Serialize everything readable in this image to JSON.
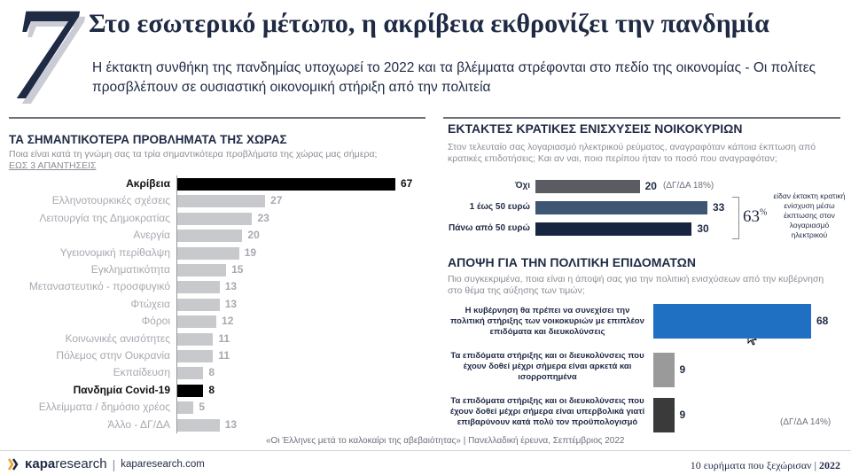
{
  "header": {
    "number": "7",
    "title": "Στο εσωτερικό μέτωπο, η ακρίβεια εκθρονίζει την πανδημία",
    "subtitle": "Η έκτακτη συνθήκη της πανδημίας υποχωρεί το 2022 και τα βλέμματα στρέφονται στο πεδίο της οικονομίας - Οι πολίτες προσβλέπουν σε ουσιαστική οικονομική στήριξη από την πολιτεία"
  },
  "left": {
    "title": "ΤΑ ΣΗΜΑΝΤΙΚΟΤΕΡΑ ΠΡΟΒΛΗΜΑΤΑ ΤΗΣ ΧΩΡΑΣ",
    "question": "Ποια είναι κατά τη γνώμη σας τα τρία σημαντικότερα προβλήματα της χώρας μας σήμερα;",
    "note": "ΕΩΣ 3 ΑΠΑΝΤΗΣΕΙΣ"
  },
  "subsidies": {
    "title": "ΕΚΤΑΚΤΕΣ ΚΡΑΤΙΚΕΣ ΕΝΙΣΧΥΣΕΙΣ ΝΟΙΚΟΚΥΡΙΩΝ",
    "question": "Στον τελευταίο σας λογαριασμό ηλεκτρικού ρεύματος, αναγραφόταν κάποια έκπτωση από κρατικές επιδοτήσεις; Και αν ναι, ποιο περίπου ήταν το ποσό που αναγραφόταν;",
    "dk_note": "(ΔΓ/ΔΑ 18%)",
    "total_label": "63",
    "total_unit": "%",
    "total_desc": "είδαν έκτακτη κρατική ενίσχυση μέσω έκπτωσης στον λογαριασμό ηλεκτρικού"
  },
  "policy": {
    "title": "ΑΠΟΨΗ ΓΙΑ ΤΗΝ ΠΟΛΙΤΙΚΗ ΕΠΙΔΟΜΑΤΩΝ",
    "question": "Πιο συγκεκριμένα, ποια είναι η άποψή σας για την πολιτική ενισχύσεων από την κυβέρνηση στο θέμα της αύξησης των τιμών;",
    "dk_note": "(ΔΓ/ΔΑ 14%)"
  },
  "footer": {
    "source": "«Οι Έλληνες μετά το καλοκαίρι της αβεβαιότητας» | Πανελλαδική έρευνα, Σεπτέμβριος 2022",
    "brand_a": "κapa",
    "brand_b": "research",
    "website": "kaparesearch.com",
    "right_text": "10 ευρήματα που ξεχώρισαν",
    "year": "2022"
  },
  "colors": {
    "navy": "#1f2a44",
    "highlight_bar": "#000000",
    "muted_bar": "#c8c9cc",
    "subsidy_bars": [
      "#5a5c61",
      "#3e5574",
      "#182540"
    ],
    "policy_bars": [
      "#1f6fc2",
      "#9a9a9a",
      "#3a3a3a"
    ]
  },
  "chart_data": [
    {
      "type": "bar",
      "orientation": "horizontal",
      "title": "ΤΑ ΣΗΜΑΝΤΙΚΟΤΕΡΑ ΠΡΟΒΛΗΜΑΤΑ ΤΗΣ ΧΩΡΑΣ",
      "categories": [
        "Ακρίβεια",
        "Ελληνοτουρκικές σχέσεις",
        "Λειτουργία της Δημοκρατίας",
        "Ανεργία",
        "Υγειονομική περίθαλψη",
        "Εγκληματικότητα",
        "Μεταναστευτικό - προσφυγικό",
        "Φτώχεια",
        "Φόροι",
        "Κοινωνικές ανισότητες",
        "Πόλεμος στην Ουκρανία",
        "Εκπαίδευση",
        "Πανδημία Covid-19",
        "Ελλείμματα / δημόσιο χρέος",
        "Άλλο - ΔΓ/ΔΑ"
      ],
      "values": [
        67,
        27,
        23,
        20,
        19,
        15,
        13,
        13,
        12,
        11,
        11,
        8,
        8,
        5,
        13
      ],
      "highlight": [
        0,
        12
      ],
      "xlim": [
        0,
        70
      ]
    },
    {
      "type": "bar",
      "orientation": "horizontal",
      "title": "ΕΚΤΑΚΤΕΣ ΚΡΑΤΙΚΕΣ ΕΝΙΣΧΥΣΕΙΣ ΝΟΙΚΟΚΥΡΙΩΝ",
      "categories": [
        "Όχι",
        "1 έως 50 ευρώ",
        "Πάνω από 50 ευρώ"
      ],
      "values": [
        20,
        33,
        30
      ],
      "xlim": [
        0,
        35
      ]
    },
    {
      "type": "bar",
      "orientation": "horizontal",
      "title": "ΑΠΟΨΗ ΓΙΑ ΤΗΝ ΠΟΛΙΤΙΚΗ ΕΠΙΔΟΜΑΤΩΝ",
      "categories": [
        "Η κυβέρνηση θα πρέπει να συνεχίσει την πολιτική στήριξης των νοικοκυριών με επιπλέον επιδόματα και διευκολύνσεις",
        "Τα επιδόματα στήριξης και οι διευκολύνσεις που έχουν δοθεί μέχρι σήμερα είναι αρκετά και ισορροπημένα",
        "Τα επιδόματα στήριξης και οι διευκολύνσεις που έχουν δοθεί μέχρι σήμερα είναι υπερβολικά γιατί επιβαρύνουν κατά πολύ τον προϋπολογισμό"
      ],
      "values": [
        68,
        9,
        9
      ],
      "xlim": [
        0,
        70
      ]
    }
  ]
}
